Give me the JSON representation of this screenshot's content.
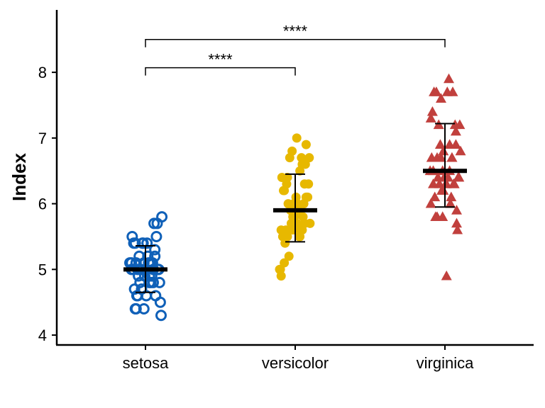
{
  "chart_data": {
    "type": "scatter",
    "title": "",
    "xlabel": "",
    "ylabel": "Index",
    "ylim": [
      3.85,
      8.95
    ],
    "yticks": [
      4,
      5,
      6,
      7,
      8
    ],
    "categories": [
      "setosa",
      "versicolor",
      "virginica"
    ],
    "grid": false,
    "legend": "none",
    "series": [
      {
        "category": "setosa",
        "color": "#0F60B8",
        "marker": "open-circle",
        "mean": 5.0,
        "sd_low": 4.65,
        "sd_high": 5.36,
        "points": [
          [
            -0.12,
            5.1
          ],
          [
            0.08,
            4.9
          ],
          [
            -0.05,
            4.7
          ],
          [
            0.13,
            4.6
          ],
          [
            -0.18,
            5.0
          ],
          [
            0.02,
            5.4
          ],
          [
            -0.1,
            4.6
          ],
          [
            0.17,
            5.0
          ],
          [
            -0.02,
            4.4
          ],
          [
            0.05,
            4.9
          ],
          [
            -0.15,
            5.4
          ],
          [
            0.1,
            4.8
          ],
          [
            -0.07,
            4.8
          ],
          [
            0.2,
            4.3
          ],
          [
            0.21,
            5.8
          ],
          [
            0.11,
            5.7
          ],
          [
            -0.13,
            5.4
          ],
          [
            0.04,
            5.1
          ],
          [
            0.15,
            5.7
          ],
          [
            -0.2,
            5.1
          ],
          [
            -0.03,
            5.4
          ],
          [
            0.09,
            5.1
          ],
          [
            -0.11,
            4.6
          ],
          [
            0.06,
            5.1
          ],
          [
            0.18,
            4.8
          ],
          [
            -0.16,
            5.0
          ],
          [
            0.0,
            5.0
          ],
          [
            -0.08,
            5.2
          ],
          [
            0.12,
            5.2
          ],
          [
            -0.14,
            4.7
          ],
          [
            0.07,
            4.8
          ],
          [
            -0.04,
            5.4
          ],
          [
            0.03,
            5.2
          ],
          [
            0.14,
            5.5
          ],
          [
            -0.09,
            4.9
          ],
          [
            0.16,
            5.0
          ],
          [
            -0.17,
            5.5
          ],
          [
            -0.01,
            4.9
          ],
          [
            -0.12,
            4.4
          ],
          [
            0.08,
            5.1
          ],
          [
            -0.06,
            5.0
          ],
          [
            0.19,
            4.5
          ],
          [
            -0.13,
            4.4
          ],
          [
            0.1,
            5.0
          ],
          [
            -0.02,
            5.1
          ],
          [
            0.05,
            4.8
          ],
          [
            -0.18,
            5.1
          ],
          [
            0.01,
            4.6
          ],
          [
            0.12,
            5.3
          ],
          [
            -0.1,
            5.0
          ]
        ]
      },
      {
        "category": "versicolor",
        "color": "#E7B800",
        "marker": "filled-circle",
        "mean": 5.9,
        "sd_low": 5.42,
        "sd_high": 6.45,
        "points": [
          [
            0.02,
            7.0
          ],
          [
            -0.1,
            6.4
          ],
          [
            0.14,
            6.9
          ],
          [
            -0.15,
            5.5
          ],
          [
            0.06,
            6.5
          ],
          [
            -0.05,
            5.7
          ],
          [
            0.12,
            6.3
          ],
          [
            -0.18,
            4.9
          ],
          [
            0.09,
            6.6
          ],
          [
            -0.08,
            5.2
          ],
          [
            -0.19,
            5.0
          ],
          [
            0.04,
            5.9
          ],
          [
            -0.02,
            6.0
          ],
          [
            0.15,
            6.1
          ],
          [
            -0.12,
            5.6
          ],
          [
            0.18,
            6.7
          ],
          [
            -0.03,
            5.6
          ],
          [
            0.1,
            5.8
          ],
          [
            -0.14,
            6.2
          ],
          [
            0.07,
            5.6
          ],
          [
            -0.06,
            5.9
          ],
          [
            0.16,
            6.1
          ],
          [
            -0.11,
            6.3
          ],
          [
            0.01,
            6.1
          ],
          [
            -0.17,
            6.4
          ],
          [
            0.13,
            6.6
          ],
          [
            -0.04,
            6.8
          ],
          [
            0.08,
            6.7
          ],
          [
            -0.09,
            6.0
          ],
          [
            0.19,
            5.7
          ],
          [
            -0.16,
            5.5
          ],
          [
            0.05,
            5.5
          ],
          [
            -0.01,
            5.8
          ],
          [
            0.11,
            6.0
          ],
          [
            -0.13,
            5.4
          ],
          [
            0.03,
            6.0
          ],
          [
            -0.07,
            6.7
          ],
          [
            0.17,
            6.3
          ],
          [
            -0.18,
            5.6
          ],
          [
            0.06,
            5.5
          ],
          [
            -0.1,
            5.5
          ],
          [
            0.14,
            6.1
          ],
          [
            -0.03,
            5.8
          ],
          [
            -0.2,
            5.0
          ],
          [
            0.09,
            5.6
          ],
          [
            -0.05,
            5.7
          ],
          [
            0.12,
            5.7
          ],
          [
            -0.15,
            6.2
          ],
          [
            -0.14,
            5.1
          ],
          [
            0.02,
            5.7
          ]
        ]
      },
      {
        "category": "virginica",
        "color": "#C1403D",
        "marker": "filled-triangle",
        "mean": 6.5,
        "sd_low": 5.95,
        "sd_high": 7.22,
        "points": [
          [
            0.02,
            6.3
          ],
          [
            -0.1,
            5.8
          ],
          [
            0.14,
            7.1
          ],
          [
            -0.15,
            6.3
          ],
          [
            0.06,
            6.5
          ],
          [
            -0.05,
            7.6
          ],
          [
            0.02,
            4.9
          ],
          [
            -0.18,
            7.3
          ],
          [
            0.09,
            6.7
          ],
          [
            -0.08,
            7.2
          ],
          [
            -0.19,
            6.5
          ],
          [
            0.04,
            6.4
          ],
          [
            -0.02,
            6.8
          ],
          [
            0.15,
            5.7
          ],
          [
            -0.12,
            5.8
          ],
          [
            0.18,
            6.4
          ],
          [
            -0.03,
            6.5
          ],
          [
            0.1,
            7.7
          ],
          [
            -0.14,
            7.7
          ],
          [
            0.07,
            6.0
          ],
          [
            -0.06,
            6.9
          ],
          [
            0.16,
            5.6
          ],
          [
            -0.11,
            7.7
          ],
          [
            0.01,
            6.3
          ],
          [
            -0.17,
            6.7
          ],
          [
            0.13,
            7.2
          ],
          [
            -0.04,
            6.2
          ],
          [
            0.08,
            6.1
          ],
          [
            -0.09,
            6.4
          ],
          [
            0.19,
            7.2
          ],
          [
            -0.16,
            7.4
          ],
          [
            0.05,
            7.9
          ],
          [
            -0.01,
            6.4
          ],
          [
            0.11,
            6.3
          ],
          [
            -0.13,
            6.1
          ],
          [
            0.03,
            7.7
          ],
          [
            -0.07,
            6.3
          ],
          [
            0.17,
            6.4
          ],
          [
            -0.18,
            6.0
          ],
          [
            0.06,
            6.9
          ],
          [
            -0.1,
            6.7
          ],
          [
            0.14,
            6.9
          ],
          [
            -0.03,
            5.8
          ],
          [
            0.2,
            6.8
          ],
          [
            0.09,
            6.7
          ],
          [
            -0.05,
            6.7
          ],
          [
            0.12,
            6.3
          ],
          [
            -0.15,
            6.5
          ],
          [
            -0.02,
            6.2
          ],
          [
            0.15,
            5.9
          ]
        ]
      }
    ],
    "comparisons": [
      {
        "from": "setosa",
        "to": "versicolor",
        "label": "****",
        "y": 8.07
      },
      {
        "from": "setosa",
        "to": "virginica",
        "label": "****",
        "y": 8.5
      }
    ]
  }
}
